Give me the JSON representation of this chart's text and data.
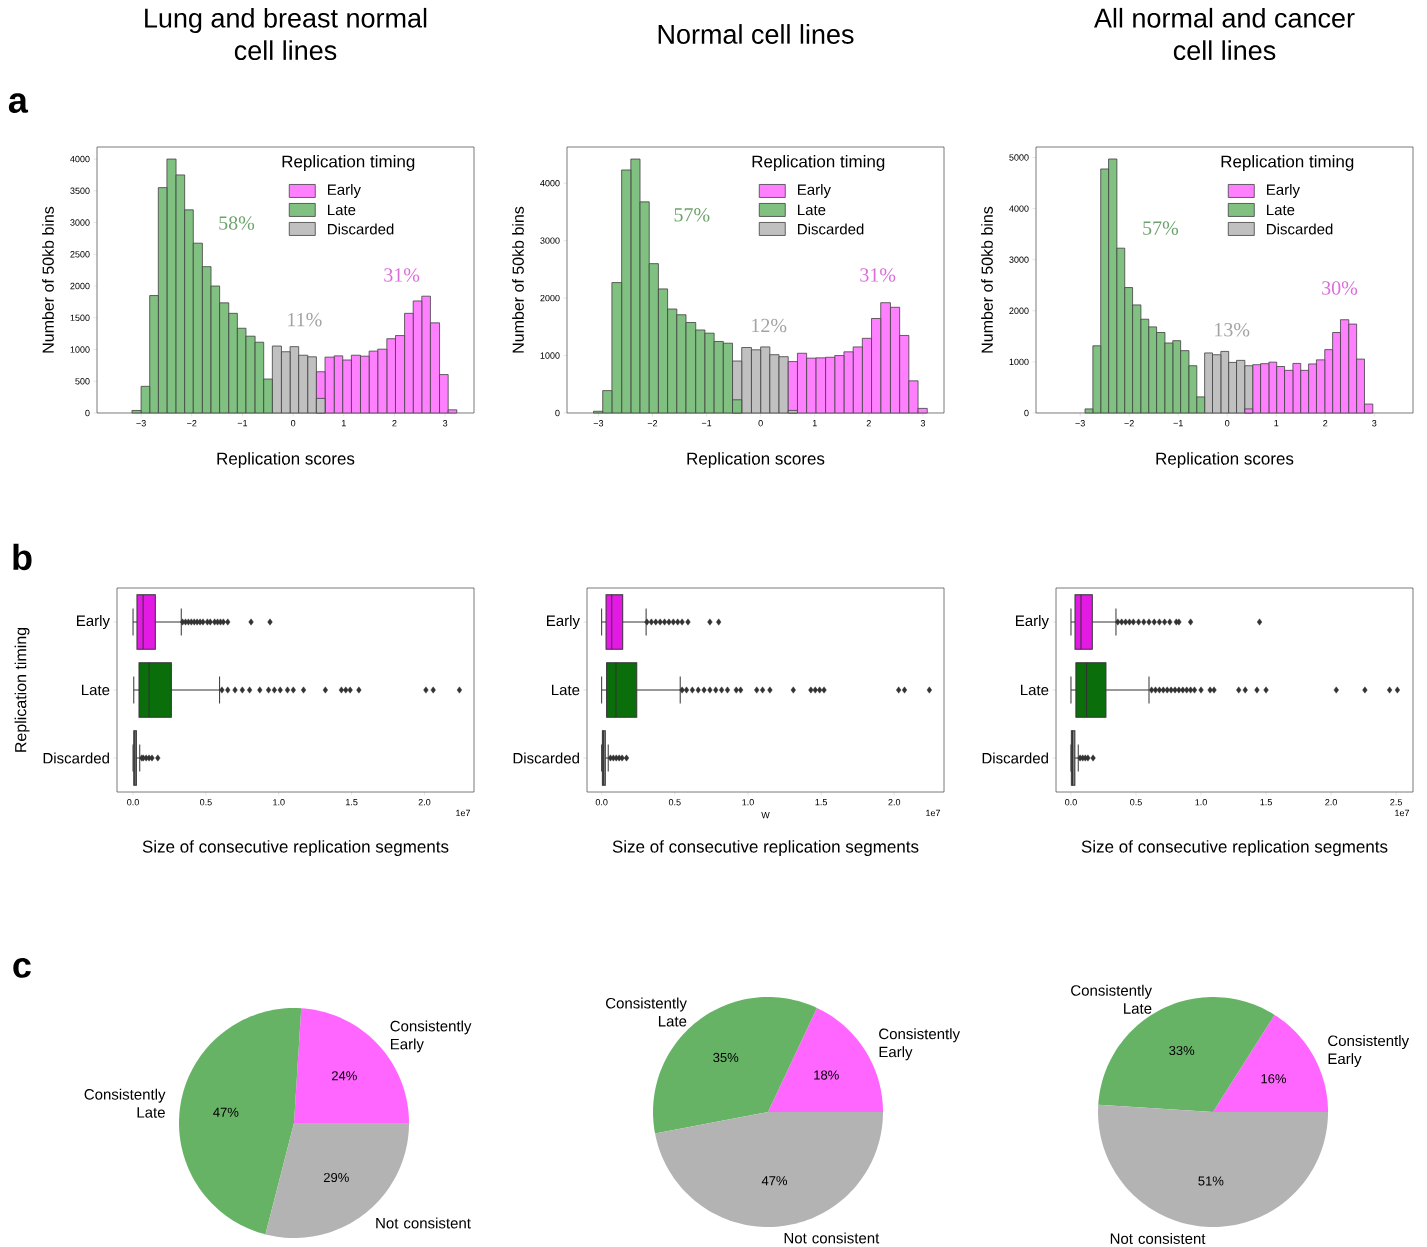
{
  "chart_data": [
    {
      "type": "histogram",
      "title": "Lung and breast normal cell lines",
      "xlabel": "Replication scores",
      "ylabel": "Number of 50kb bins",
      "legend_title": "Replication timing",
      "legend": "top right",
      "xlim": [
        -3.87,
        3.57
      ],
      "ylim": [
        0,
        4190
      ],
      "xticks": [
        {
          "value": -3,
          "label": "−3"
        },
        {
          "value": -2,
          "label": "−2"
        },
        {
          "value": -1,
          "label": "−1"
        },
        {
          "value": 0,
          "label": "0"
        },
        {
          "value": 1,
          "label": "1"
        },
        {
          "value": 2,
          "label": "2"
        },
        {
          "value": 3,
          "label": "3"
        }
      ],
      "yticks": [
        {
          "value": 0,
          "label": "0"
        },
        {
          "value": 500,
          "label": "500"
        },
        {
          "value": 1000,
          "label": "1000"
        },
        {
          "value": 1500,
          "label": "1500"
        },
        {
          "value": 2000,
          "label": "2000"
        },
        {
          "value": 2500,
          "label": "2500"
        },
        {
          "value": 3000,
          "label": "3000"
        },
        {
          "value": 3500,
          "label": "3500"
        },
        {
          "value": 4000,
          "label": "4000"
        }
      ],
      "bins": [
        -3.18,
        -3.0,
        -2.83,
        -2.66,
        -2.49,
        -2.31,
        -2.14,
        -1.97,
        -1.79,
        -1.62,
        -1.45,
        -1.27,
        -1.1,
        -0.93,
        -0.75,
        -0.58,
        -0.41,
        -0.23,
        -0.06,
        0.11,
        0.29,
        0.46,
        0.63,
        0.81,
        0.98,
        1.15,
        1.33,
        1.5,
        1.67,
        1.85,
        2.02,
        2.2,
        2.37,
        2.54,
        2.71,
        2.89,
        3.06,
        3.23
      ],
      "series": [
        {
          "name": "Early",
          "color": "#ff80ff",
          "values": [
            null,
            null,
            null,
            null,
            null,
            null,
            null,
            null,
            null,
            null,
            null,
            null,
            null,
            null,
            null,
            null,
            null,
            null,
            null,
            null,
            null,
            650,
            880,
            900,
            835,
            910,
            895,
            975,
            1005,
            1170,
            1220,
            1570,
            1765,
            1840,
            1420,
            605,
            50
          ]
        },
        {
          "name": "Late",
          "color": "#80c080",
          "values": [
            40,
            420,
            1850,
            3550,
            4000,
            3750,
            3200,
            2675,
            2305,
            2000,
            1735,
            1570,
            1335,
            1210,
            1115,
            535,
            null,
            null,
            null,
            null,
            null,
            null,
            null,
            null,
            null,
            null,
            null,
            null,
            null,
            null,
            null,
            null,
            null,
            null,
            null,
            null,
            null
          ]
        },
        {
          "name": "Discarded",
          "color": "#c0c0c0",
          "values": [
            null,
            null,
            null,
            null,
            null,
            null,
            null,
            null,
            null,
            null,
            null,
            null,
            null,
            null,
            null,
            null,
            1055,
            965,
            1045,
            910,
            885,
            230,
            null,
            null,
            null,
            null,
            null,
            null,
            null,
            null,
            null,
            null,
            null,
            null,
            null,
            null,
            null
          ]
        }
      ],
      "annotations": [
        "31%",
        "58%",
        "11%",
        "a"
      ]
    },
    {
      "type": "histogram",
      "title": "Normal cell lines",
      "xlabel": "Replication scores",
      "ylabel": "Number of 50kb bins",
      "legend_title": "Replication timing",
      "legend": "top right",
      "xlim": [
        -3.58,
        3.39
      ],
      "ylim": [
        0,
        4630
      ],
      "xticks": [
        {
          "value": -3,
          "label": "−3"
        },
        {
          "value": -2,
          "label": "−2"
        },
        {
          "value": -1,
          "label": "−1"
        },
        {
          "value": 0,
          "label": "0"
        },
        {
          "value": 1,
          "label": "1"
        },
        {
          "value": 2,
          "label": "2"
        },
        {
          "value": 3,
          "label": "3"
        }
      ],
      "yticks": [
        {
          "value": 0,
          "label": "0"
        },
        {
          "value": 1000,
          "label": "1000"
        },
        {
          "value": 2000,
          "label": "2000"
        },
        {
          "value": 3000,
          "label": "3000"
        },
        {
          "value": 4000,
          "label": "4000"
        }
      ],
      "bins": [
        -3.09,
        -2.92,
        -2.75,
        -2.57,
        -2.4,
        -2.23,
        -2.06,
        -1.89,
        -1.72,
        -1.55,
        -1.38,
        -1.2,
        -1.03,
        -0.86,
        -0.69,
        -0.52,
        -0.35,
        -0.17,
        0.0,
        0.17,
        0.34,
        0.51,
        0.68,
        0.85,
        1.02,
        1.2,
        1.37,
        1.54,
        1.71,
        1.88,
        2.05,
        2.22,
        2.4,
        2.57,
        2.74,
        2.91,
        3.08
      ],
      "series": [
        {
          "name": "Early",
          "color": "#ff80ff",
          "values": [
            null,
            null,
            null,
            null,
            null,
            null,
            null,
            null,
            null,
            null,
            null,
            null,
            null,
            null,
            null,
            null,
            null,
            null,
            null,
            null,
            null,
            895,
            1040,
            955,
            960,
            970,
            1000,
            1065,
            1150,
            1300,
            1645,
            1920,
            1840,
            1350,
            560,
            80
          ]
        },
        {
          "name": "Late",
          "color": "#80c080",
          "values": [
            30,
            390,
            2270,
            4230,
            4420,
            3675,
            2600,
            2160,
            1810,
            1710,
            1575,
            1445,
            1390,
            1245,
            1215,
            230,
            null,
            null,
            null,
            null,
            null,
            null,
            null,
            null,
            null,
            null,
            null,
            null,
            null,
            null,
            null,
            null,
            null,
            null,
            null,
            null
          ]
        },
        {
          "name": "Discarded",
          "color": "#c0c0c0",
          "values": [
            null,
            null,
            null,
            null,
            null,
            null,
            null,
            null,
            null,
            null,
            null,
            null,
            null,
            null,
            null,
            905,
            1140,
            1100,
            1150,
            1015,
            980,
            45,
            null,
            null,
            null,
            null,
            null,
            null,
            null,
            null,
            null,
            null,
            null,
            null,
            null,
            null
          ]
        }
      ],
      "annotations": [
        "31%",
        "57%",
        "12%"
      ]
    },
    {
      "type": "histogram",
      "title": "All normal and cancer cell lines",
      "xlabel": "Replication scores",
      "ylabel": "Number of 50kb bins",
      "legend_title": "Replication timing",
      "legend": "top right",
      "xlim": [
        -3.9,
        3.79
      ],
      "ylim": [
        0,
        5205
      ],
      "xticks": [
        {
          "value": -3,
          "label": "−3"
        },
        {
          "value": -2,
          "label": "−2"
        },
        {
          "value": -1,
          "label": "−1"
        },
        {
          "value": 0,
          "label": "0"
        },
        {
          "value": 1,
          "label": "1"
        },
        {
          "value": 2,
          "label": "2"
        },
        {
          "value": 3,
          "label": "3"
        }
      ],
      "yticks": [
        {
          "value": 0,
          "label": "0"
        },
        {
          "value": 1000,
          "label": "1000"
        },
        {
          "value": 2000,
          "label": "2000"
        },
        {
          "value": 3000,
          "label": "3000"
        },
        {
          "value": 4000,
          "label": "4000"
        },
        {
          "value": 5000,
          "label": "5000"
        }
      ],
      "bins": [
        -2.9,
        -2.74,
        -2.58,
        -2.42,
        -2.25,
        -2.09,
        -1.93,
        -1.76,
        -1.6,
        -1.44,
        -1.27,
        -1.11,
        -0.95,
        -0.78,
        -0.62,
        -0.46,
        -0.3,
        -0.13,
        0.03,
        0.19,
        0.36,
        0.52,
        0.68,
        0.85,
        1.01,
        1.17,
        1.34,
        1.5,
        1.66,
        1.82,
        1.99,
        2.15,
        2.31,
        2.48,
        2.64,
        2.8,
        2.97
      ],
      "series": [
        {
          "name": "Early",
          "color": "#ff80ff",
          "values": [
            null,
            null,
            null,
            null,
            null,
            null,
            null,
            null,
            null,
            null,
            null,
            null,
            null,
            null,
            null,
            null,
            null,
            null,
            null,
            null,
            80,
            945,
            965,
            995,
            910,
            835,
            970,
            835,
            960,
            1040,
            1240,
            1575,
            1825,
            1740,
            1055,
            175
          ]
        },
        {
          "name": "Late",
          "color": "#80c080",
          "values": [
            80,
            1315,
            4775,
            4970,
            3225,
            2455,
            2115,
            1835,
            1685,
            1575,
            1370,
            1415,
            1220,
            925,
            315,
            null,
            null,
            null,
            null,
            null,
            null,
            null,
            null,
            null,
            null,
            null,
            null,
            null,
            null,
            null,
            null,
            null,
            null,
            null,
            null,
            null
          ]
        },
        {
          "name": "Discarded",
          "color": "#c0c0c0",
          "values": [
            null,
            null,
            null,
            null,
            null,
            null,
            null,
            null,
            null,
            null,
            null,
            null,
            null,
            null,
            null,
            1175,
            1140,
            1205,
            990,
            1030,
            925,
            null,
            null,
            null,
            null,
            null,
            null,
            null,
            null,
            null,
            null,
            null,
            null,
            null,
            null,
            null
          ]
        }
      ],
      "annotations": [
        "30%",
        "57%",
        "13%"
      ]
    },
    {
      "type": "box",
      "orientation": "horizontal",
      "categories": [
        "Early",
        "Late",
        "Discarded"
      ],
      "colors": [
        "#e31ae3",
        "#0a6f0a",
        "#808080"
      ],
      "xlabel": "Size of consecutive replication segments",
      "ylabel": "Replication timing",
      "xlim": [
        -0.11,
        2.34
      ],
      "xticks": [
        {
          "value": 0,
          "label": "0.0"
        },
        {
          "value": 0.5,
          "label": "0.5"
        },
        {
          "value": 1,
          "label": "1.0"
        },
        {
          "value": 1.5,
          "label": "1.5"
        },
        {
          "value": 2,
          "label": "2.0"
        }
      ],
      "boxes": [
        {
          "low": 0,
          "q1": 0.027,
          "median": 0.069,
          "q3": 0.153,
          "high": 0.331,
          "outliers": [
            0.34,
            0.36,
            0.38,
            0.4,
            0.42,
            0.44,
            0.46,
            0.48,
            0.51,
            0.53,
            0.56,
            0.58,
            0.6,
            0.62,
            0.65,
            0.81,
            0.94
          ]
        },
        {
          "low": 0.005,
          "q1": 0.041,
          "median": 0.11,
          "q3": 0.263,
          "high": 0.594,
          "outliers": [
            0.61,
            0.65,
            0.7,
            0.75,
            0.8,
            0.87,
            0.93,
            0.97,
            1.01,
            1.06,
            1.1,
            1.17,
            1.32,
            1.43,
            1.46,
            1.49,
            1.55,
            2.01,
            2.06,
            2.24
          ]
        },
        {
          "low": 0,
          "q1": 0.005,
          "median": 0.012,
          "q3": 0.023,
          "high": 0.046,
          "outliers": [
            0.06,
            0.07,
            0.09,
            0.11,
            0.13,
            0.17
          ]
        }
      ],
      "annotations": [
        "1e7",
        "b"
      ]
    },
    {
      "type": "box",
      "orientation": "horizontal",
      "categories": [
        "Early",
        "Late",
        "Discarded"
      ],
      "colors": [
        "#e31ae3",
        "#0a6f0a",
        "#808080"
      ],
      "xlabel": "W",
      "xlim": [
        -0.1,
        2.34
      ],
      "xticks": [
        {
          "value": 0,
          "label": "0.0"
        },
        {
          "value": 0.5,
          "label": "0.5"
        },
        {
          "value": 1,
          "label": "1.0"
        },
        {
          "value": 1.5,
          "label": "1.5"
        },
        {
          "value": 2,
          "label": "2.0"
        }
      ],
      "boxes": [
        {
          "low": 0,
          "q1": 0.03,
          "median": 0.069,
          "q3": 0.144,
          "high": 0.304,
          "outliers": [
            0.31,
            0.34,
            0.37,
            0.4,
            0.43,
            0.46,
            0.49,
            0.52,
            0.55,
            0.59,
            0.74,
            0.8
          ]
        },
        {
          "low": 0,
          "q1": 0.034,
          "median": 0.098,
          "q3": 0.24,
          "high": 0.537,
          "outliers": [
            0.55,
            0.58,
            0.62,
            0.66,
            0.7,
            0.74,
            0.78,
            0.82,
            0.86,
            0.92,
            0.95,
            1.06,
            1.1,
            1.15,
            1.31,
            1.43,
            1.46,
            1.49,
            1.52,
            2.03,
            2.07,
            2.24
          ]
        },
        {
          "low": 0,
          "q1": 0.005,
          "median": 0.012,
          "q3": 0.025,
          "high": 0.045,
          "outliers": [
            0.06,
            0.08,
            0.1,
            0.12,
            0.14,
            0.17
          ]
        }
      ],
      "annotations": [
        "1e7",
        "Size of consecutive replication segments"
      ]
    },
    {
      "type": "box",
      "orientation": "horizontal",
      "categories": [
        "Early",
        "Late",
        "Discarded"
      ],
      "colors": [
        "#e31ae3",
        "#0a6f0a",
        "#808080"
      ],
      "xlabel": "Size of consecutive replication segments",
      "xlim": [
        -0.115,
        2.63
      ],
      "xticks": [
        {
          "value": 0,
          "label": "0.0"
        },
        {
          "value": 0.5,
          "label": "0.5"
        },
        {
          "value": 1,
          "label": "1.0"
        },
        {
          "value": 1.5,
          "label": "1.5"
        },
        {
          "value": 2,
          "label": "2.0"
        },
        {
          "value": 2.5,
          "label": "2.5"
        }
      ],
      "boxes": [
        {
          "low": 0,
          "q1": 0.031,
          "median": 0.077,
          "q3": 0.164,
          "high": 0.346,
          "outliers": [
            0.36,
            0.39,
            0.42,
            0.45,
            0.48,
            0.52,
            0.56,
            0.6,
            0.64,
            0.68,
            0.72,
            0.76,
            0.81,
            0.83,
            0.92,
            1.45
          ]
        },
        {
          "low": 0,
          "q1": 0.038,
          "median": 0.12,
          "q3": 0.269,
          "high": 0.6,
          "outliers": [
            0.62,
            0.65,
            0.68,
            0.71,
            0.74,
            0.77,
            0.8,
            0.83,
            0.86,
            0.89,
            0.92,
            0.95,
            1.0,
            1.07,
            1.1,
            1.29,
            1.34,
            1.43,
            1.5,
            2.04,
            2.26,
            2.45,
            2.51
          ]
        },
        {
          "low": 0,
          "q1": 0.003,
          "median": 0.012,
          "q3": 0.03,
          "high": 0.056,
          "outliers": [
            0.07,
            0.09,
            0.11,
            0.13,
            0.17
          ]
        }
      ],
      "annotations": [
        "1e7"
      ]
    },
    {
      "type": "pie",
      "categories": [
        "Consistently Early",
        "Consistently Late",
        "Not consistent"
      ],
      "values": [
        24,
        47,
        29
      ],
      "colors": [
        "#ff66ff",
        "#66b366",
        "#b3b3b3"
      ],
      "value_labels": [
        "24%",
        "47%",
        "29%"
      ],
      "annotations": [
        "c"
      ]
    },
    {
      "type": "pie",
      "categories": [
        "Consistently Early",
        "Consistently Late",
        "Not consistent"
      ],
      "values": [
        18,
        35,
        47
      ],
      "colors": [
        "#ff66ff",
        "#66b366",
        "#b3b3b3"
      ],
      "value_labels": [
        "18%",
        "35%",
        "47%"
      ]
    },
    {
      "type": "pie",
      "categories": [
        "Consistently Early",
        "Consistently Late",
        "Not consistent"
      ],
      "values": [
        16,
        33,
        51
      ],
      "colors": [
        "#ff66ff",
        "#66b366",
        "#b3b3b3"
      ],
      "value_labels": [
        "16%",
        "33%",
        "51%"
      ]
    }
  ]
}
